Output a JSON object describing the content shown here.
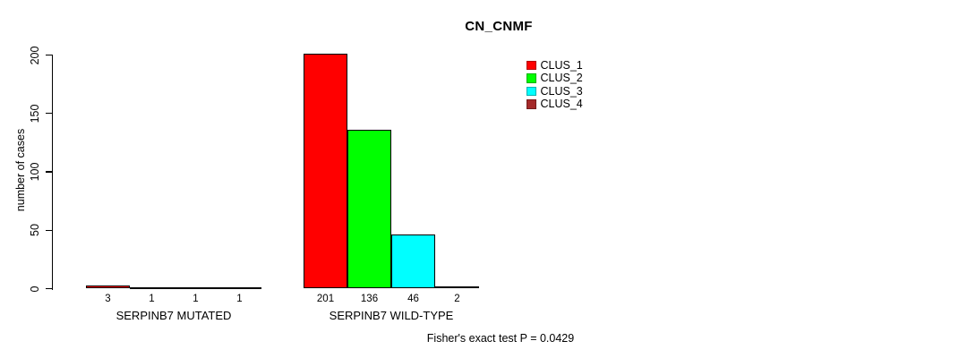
{
  "chart_data": {
    "type": "bar",
    "title": "CN_CNMF",
    "ylabel": "number of cases",
    "xlabel": "",
    "ylim": [
      0,
      200
    ],
    "yticks": [
      0,
      50,
      100,
      150,
      200
    ],
    "grid": false,
    "legend_position": "top-right",
    "background_color": "#ffffff",
    "text_color": "#000000",
    "bar_border_color": "#000000",
    "categories": [
      "SERPINB7 MUTATED",
      "SERPINB7 WILD-TYPE"
    ],
    "series": [
      {
        "name": "CLUS_1",
        "color": "#ff0000",
        "values": [
          3,
          201
        ]
      },
      {
        "name": "CLUS_2",
        "color": "#00ff00",
        "values": [
          1,
          136
        ]
      },
      {
        "name": "CLUS_3",
        "color": "#00ffff",
        "values": [
          1,
          46
        ]
      },
      {
        "name": "CLUS_4",
        "color": "#a52a2a",
        "values": [
          1,
          2
        ]
      }
    ],
    "show_value_labels": true,
    "annotation": "Fisher's exact test P = 0.0429"
  }
}
